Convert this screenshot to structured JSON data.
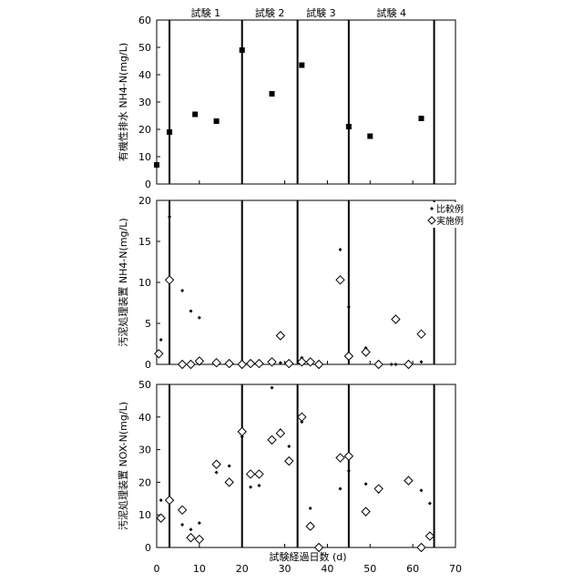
{
  "chart_data": [
    {
      "type": "scatter",
      "ylabel": "有機性排水 NH4-N(mg/L)",
      "xlim": [
        0,
        70
      ],
      "ylim": [
        0,
        60
      ],
      "yticks": [
        "0",
        "10",
        "20",
        "30",
        "40",
        "50",
        "60"
      ],
      "grid": false,
      "trial_labels": [
        {
          "label": "試験 1",
          "center_day": 11.5
        },
        {
          "label": "試験 2",
          "center_day": 26.5
        },
        {
          "label": "試験 3",
          "center_day": 38.5
        },
        {
          "label": "試験 4",
          "center_day": 55
        }
      ],
      "trial_boundaries": [
        3,
        20,
        33,
        45,
        65
      ],
      "series": [
        {
          "name": "",
          "marker": "filled-square",
          "points": [
            [
              0,
              7
            ],
            [
              3,
              19
            ],
            [
              9,
              25.5
            ],
            [
              14,
              23
            ],
            [
              20,
              49
            ],
            [
              27,
              33
            ],
            [
              34,
              43.5
            ],
            [
              45,
              21
            ],
            [
              50,
              17.5
            ],
            [
              62,
              24
            ]
          ]
        }
      ]
    },
    {
      "type": "scatter",
      "ylabel": "汚泥処理装置 NH4-N(mg/L)",
      "xlim": [
        0,
        70
      ],
      "ylim": [
        0,
        20
      ],
      "yticks": [
        "0",
        "5",
        "10",
        "15",
        "20"
      ],
      "grid": false,
      "trial_boundaries": [
        3,
        20,
        33,
        45,
        65
      ],
      "legend": {
        "placement": "top-right",
        "items": [
          "比較例",
          "実施例"
        ]
      },
      "series": [
        {
          "name": "比較例",
          "marker": "small-diamond-filled",
          "points": [
            [
              1,
              3
            ],
            [
              3,
              18
            ],
            [
              6,
              9
            ],
            [
              8,
              6.5
            ],
            [
              10,
              5.7
            ],
            [
              14,
              0.5
            ],
            [
              17,
              0.3
            ],
            [
              20,
              0.2
            ],
            [
              22,
              0
            ],
            [
              24,
              0.4
            ],
            [
              27,
              0.5
            ],
            [
              29,
              0.2
            ],
            [
              31,
              0
            ],
            [
              34,
              0.8
            ],
            [
              36,
              0.3
            ],
            [
              38,
              0
            ],
            [
              43,
              14
            ],
            [
              45,
              7
            ],
            [
              49,
              2
            ],
            [
              52,
              0
            ],
            [
              55,
              0
            ],
            [
              56,
              0
            ],
            [
              59,
              0.1
            ],
            [
              62,
              0.3
            ]
          ]
        },
        {
          "name": "実施例",
          "marker": "open-diamond",
          "points": [
            [
              0.5,
              1.3
            ],
            [
              3,
              10.3
            ],
            [
              6,
              0
            ],
            [
              8,
              0
            ],
            [
              10,
              0.4
            ],
            [
              14,
              0.2
            ],
            [
              17,
              0.1
            ],
            [
              20,
              0
            ],
            [
              22,
              0.1
            ],
            [
              24,
              0.1
            ],
            [
              27,
              0.3
            ],
            [
              29,
              3.5
            ],
            [
              31,
              0.1
            ],
            [
              34,
              0.3
            ],
            [
              36,
              0.3
            ],
            [
              38,
              0
            ],
            [
              43,
              10.3
            ],
            [
              45,
              1
            ],
            [
              49,
              1.5
            ],
            [
              52,
              0
            ],
            [
              56,
              5.5
            ],
            [
              59,
              0
            ],
            [
              62,
              3.7
            ]
          ]
        }
      ]
    },
    {
      "type": "scatter",
      "ylabel": "汚泥処理装置 NOX-N(mg/L)",
      "xlabel": "試験経過日数 (d)",
      "xlim": [
        0,
        70
      ],
      "xticks": [
        "0",
        "10",
        "20",
        "30",
        "40",
        "50",
        "60",
        "70"
      ],
      "ylim": [
        0,
        50
      ],
      "yticks": [
        "0",
        "10",
        "20",
        "30",
        "40",
        "50"
      ],
      "grid": false,
      "trial_boundaries": [
        3,
        20,
        33,
        45,
        65
      ],
      "series": [
        {
          "name": "比較例",
          "marker": "small-diamond-filled",
          "points": [
            [
              1,
              14.5
            ],
            [
              3,
              14.5
            ],
            [
              6,
              7
            ],
            [
              8,
              5.5
            ],
            [
              10,
              7.5
            ],
            [
              14,
              23
            ],
            [
              17,
              25
            ],
            [
              20,
              34
            ],
            [
              22,
              18.5
            ],
            [
              24,
              19
            ],
            [
              27,
              49
            ],
            [
              29,
              36
            ],
            [
              31,
              31
            ],
            [
              34,
              38.5
            ],
            [
              36,
              12
            ],
            [
              38,
              0
            ],
            [
              43,
              18
            ],
            [
              45,
              23.5
            ],
            [
              49,
              19.5
            ],
            [
              52,
              17
            ],
            [
              59,
              21
            ],
            [
              62,
              17.5
            ],
            [
              64,
              13.5
            ]
          ]
        },
        {
          "name": "実施例",
          "marker": "open-diamond",
          "points": [
            [
              1,
              9
            ],
            [
              3,
              14.5
            ],
            [
              6,
              11.5
            ],
            [
              8,
              3
            ],
            [
              10,
              2.5
            ],
            [
              14,
              25.5
            ],
            [
              17,
              20
            ],
            [
              20,
              35.5
            ],
            [
              22,
              22.5
            ],
            [
              24,
              22.5
            ],
            [
              27,
              33
            ],
            [
              29,
              35
            ],
            [
              31,
              26.5
            ],
            [
              34,
              40
            ],
            [
              36,
              6.5
            ],
            [
              38,
              0
            ],
            [
              43,
              27.5
            ],
            [
              45,
              28
            ],
            [
              49,
              11
            ],
            [
              52,
              18
            ],
            [
              59,
              20.5
            ],
            [
              62,
              0
            ],
            [
              64,
              3.5
            ]
          ]
        }
      ]
    }
  ]
}
